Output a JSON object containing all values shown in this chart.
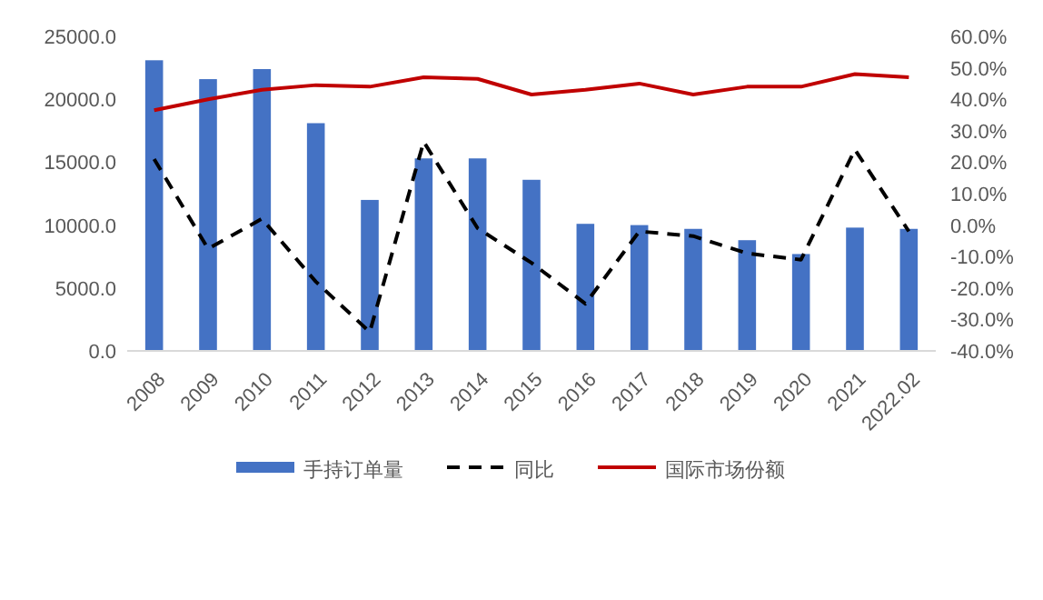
{
  "chart_data": {
    "type": "bar",
    "categories": [
      "2008",
      "2009",
      "2010",
      "2011",
      "2012",
      "2013",
      "2014",
      "2015",
      "2016",
      "2017",
      "2018",
      "2019",
      "2020",
      "2021",
      "2022.02"
    ],
    "series": [
      {
        "name": "手持订单量",
        "color": "#4472c4",
        "values": [
          23100,
          21600,
          22400,
          18100,
          12000,
          15300,
          15300,
          13600,
          10100,
          10000,
          9700,
          8800,
          7700,
          9800,
          9700
        ]
      },
      {
        "name": "同比",
        "type": "line",
        "axis": "y2",
        "line_style": "dashed",
        "color": "#000000",
        "values": [
          21,
          -7.5,
          2,
          -18,
          -34,
          26.5,
          -1,
          -12,
          -25,
          -2,
          -3.5,
          -9,
          -11,
          24,
          -2
        ]
      },
      {
        "name": "国际市场份额",
        "type": "line",
        "axis": "y2",
        "line_style": "solid",
        "color": "#c00000",
        "values": [
          36.5,
          40,
          43,
          44.5,
          44,
          47,
          46.5,
          41.5,
          43,
          45,
          41.5,
          44,
          44,
          48,
          47
        ]
      }
    ],
    "ylim": [
      0,
      25000
    ],
    "yticks": [
      {
        "value": 0,
        "label": "0.0"
      },
      {
        "value": 5000,
        "label": "5000.0"
      },
      {
        "value": 10000,
        "label": "10000.0"
      },
      {
        "value": 15000,
        "label": "15000.0"
      },
      {
        "value": 20000,
        "label": "20000.0"
      },
      {
        "value": 25000,
        "label": "25000.0"
      }
    ],
    "y2lim": [
      -40,
      60
    ],
    "y2ticks": [
      {
        "value": -40,
        "label": "-40.0%"
      },
      {
        "value": -30,
        "label": "-30.0%"
      },
      {
        "value": -20,
        "label": "-20.0%"
      },
      {
        "value": -10,
        "label": "-10.0%"
      },
      {
        "value": 0,
        "label": "0.0%"
      },
      {
        "value": 10,
        "label": "10.0%"
      },
      {
        "value": 20,
        "label": "20.0%"
      },
      {
        "value": 30,
        "label": "30.0%"
      },
      {
        "value": 40,
        "label": "40.0%"
      },
      {
        "value": 50,
        "label": "50.0%"
      },
      {
        "value": 60,
        "label": "60.0%"
      }
    ],
    "legend": "bottom"
  }
}
